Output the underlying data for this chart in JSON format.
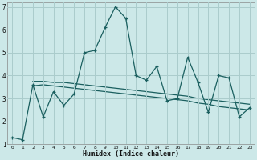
{
  "xlabel": "Humidex (Indice chaleur)",
  "xlim": [
    -0.5,
    23.5
  ],
  "ylim": [
    1,
    7.2
  ],
  "xticks": [
    0,
    1,
    2,
    3,
    4,
    5,
    6,
    7,
    8,
    9,
    10,
    11,
    12,
    13,
    14,
    15,
    16,
    17,
    18,
    19,
    20,
    21,
    22,
    23
  ],
  "yticks": [
    1,
    2,
    3,
    4,
    5,
    6,
    7
  ],
  "background_color": "#cce8e8",
  "grid_color": "#aacccc",
  "line_color": "#1a5f5f",
  "series1_x": [
    0,
    1,
    2,
    3,
    4,
    5,
    6,
    7,
    8,
    9,
    10,
    11,
    12,
    13,
    14,
    15,
    16,
    17,
    18,
    19,
    20,
    21,
    22,
    23
  ],
  "series1_y": [
    1.3,
    1.2,
    3.6,
    2.2,
    3.3,
    2.7,
    3.2,
    5.0,
    5.1,
    6.1,
    7.0,
    6.5,
    4.0,
    3.8,
    4.4,
    2.9,
    3.0,
    4.8,
    3.7,
    2.4,
    4.0,
    3.9,
    2.2,
    2.6
  ],
  "series2_x": [
    2,
    3,
    4,
    5,
    6,
    7,
    8,
    9,
    10,
    11,
    12,
    13,
    14,
    15,
    16,
    17,
    18,
    19,
    20,
    21,
    22,
    23
  ],
  "series2_y": [
    3.75,
    3.75,
    3.7,
    3.7,
    3.65,
    3.6,
    3.55,
    3.5,
    3.45,
    3.4,
    3.35,
    3.3,
    3.25,
    3.2,
    3.15,
    3.1,
    3.0,
    2.95,
    2.9,
    2.85,
    2.8,
    2.75
  ],
  "series3_x": [
    2,
    3,
    4,
    5,
    6,
    7,
    8,
    9,
    10,
    11,
    12,
    13,
    14,
    15,
    16,
    17,
    18,
    19,
    20,
    21,
    22,
    23
  ],
  "series3_y": [
    3.55,
    3.6,
    3.55,
    3.5,
    3.45,
    3.4,
    3.35,
    3.3,
    3.25,
    3.2,
    3.15,
    3.1,
    3.05,
    3.0,
    2.95,
    2.9,
    2.8,
    2.75,
    2.65,
    2.6,
    2.55,
    2.5
  ],
  "linewidth": 0.9,
  "markersize": 3.5
}
